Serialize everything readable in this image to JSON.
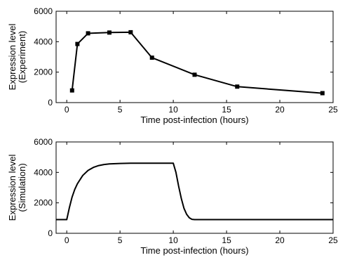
{
  "chart_data": [
    {
      "type": "line",
      "title": "",
      "xlabel": "Time post-infection (hours)",
      "ylabel": [
        "Expression level",
        "(Experiment)"
      ],
      "xlim": [
        -1,
        25
      ],
      "ylim": [
        0,
        6000
      ],
      "xticks": [
        0,
        5,
        10,
        15,
        20,
        25
      ],
      "yticks": [
        0,
        2000,
        4000,
        6000
      ],
      "grid": false,
      "markers": true,
      "series": [
        {
          "x": [
            0.5,
            1,
            2,
            4,
            6,
            8,
            12,
            16,
            24
          ],
          "y": [
            800,
            3850,
            4550,
            4600,
            4620,
            2950,
            1830,
            1050,
            620
          ]
        }
      ]
    },
    {
      "type": "line",
      "title": "",
      "xlabel": "Time post-infection (hours)",
      "ylabel": [
        "Expression level",
        "(Simulation)"
      ],
      "xlim": [
        -1,
        25
      ],
      "ylim": [
        0,
        6000
      ],
      "xticks": [
        0,
        5,
        10,
        15,
        20,
        25
      ],
      "yticks": [
        0,
        2000,
        4000,
        6000
      ],
      "grid": false,
      "markers": false,
      "series": [
        {
          "x": [
            -1,
            0,
            0.25,
            0.5,
            0.75,
            1,
            1.5,
            2,
            2.5,
            3,
            3.5,
            4,
            5,
            6,
            8,
            10,
            10.25,
            10.5,
            10.75,
            11,
            11.25,
            11.5,
            11.75,
            12,
            15,
            20,
            25
          ],
          "y": [
            900,
            900,
            1700,
            2380,
            2880,
            3260,
            3800,
            4130,
            4330,
            4450,
            4520,
            4560,
            4590,
            4600,
            4600,
            4600,
            4000,
            3100,
            2300,
            1650,
            1250,
            1020,
            920,
            900,
            900,
            900,
            900
          ]
        }
      ]
    }
  ]
}
